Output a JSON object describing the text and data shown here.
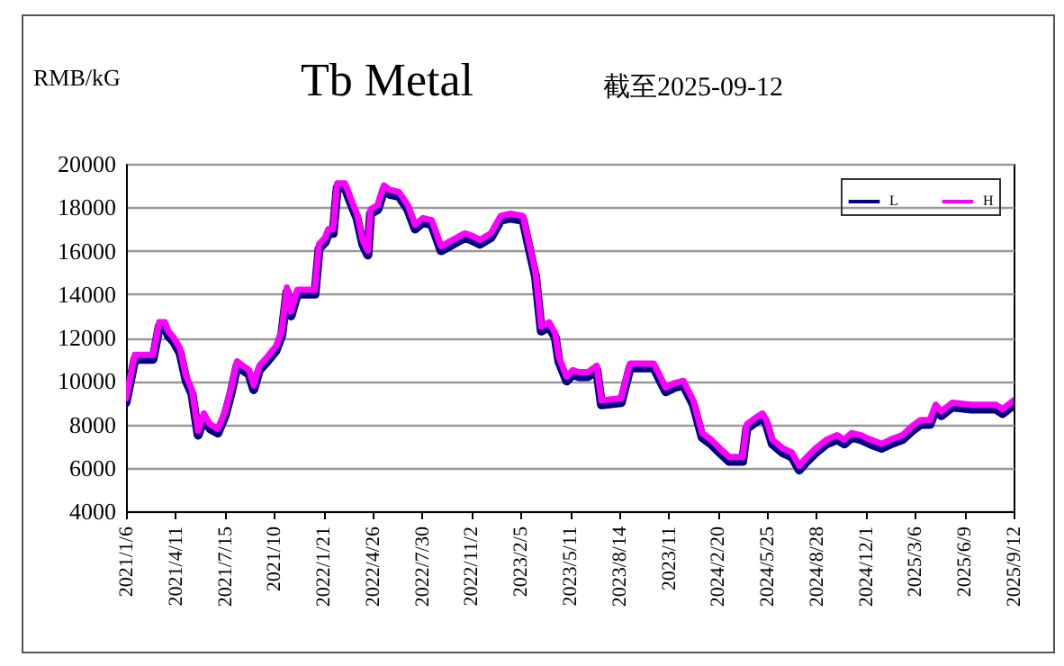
{
  "chart_data": {
    "type": "line",
    "title": "Tb Metal",
    "subtitle": "截至2025-09-12",
    "ylabel": "RMB/kG",
    "x": [
      "2021-01-06",
      "2021-01-23",
      "2021-02-27",
      "2021-03-11",
      "2021-03-22",
      "2021-03-28",
      "2021-04-08",
      "2021-04-20",
      "2021-05-02",
      "2021-05-13",
      "2021-05-25",
      "2021-06-05",
      "2021-06-17",
      "2021-07-02",
      "2021-07-16",
      "2021-07-27",
      "2021-08-08",
      "2021-08-19",
      "2021-08-31",
      "2021-09-09",
      "2021-09-20",
      "2021-10-05",
      "2021-10-22",
      "2021-11-02",
      "2021-11-12",
      "2021-11-20",
      "2021-12-02",
      "2022-01-05",
      "2022-01-13",
      "2022-01-25",
      "2022-01-31",
      "2022-02-09",
      "2022-02-17",
      "2022-03-04",
      "2022-03-15",
      "2022-03-27",
      "2022-04-07",
      "2022-04-17",
      "2022-04-22",
      "2022-05-06",
      "2022-05-18",
      "2022-05-29",
      "2022-06-16",
      "2022-07-03",
      "2022-07-17",
      "2022-08-01",
      "2022-08-18",
      "2022-09-05",
      "2022-09-28",
      "2022-10-21",
      "2022-11-02",
      "2022-11-19",
      "2022-12-10",
      "2022-12-29",
      "2023-01-16",
      "2023-02-10",
      "2023-02-19",
      "2023-03-06",
      "2023-03-17",
      "2023-04-01",
      "2023-04-13",
      "2023-04-20",
      "2023-05-05",
      "2023-05-17",
      "2023-05-28",
      "2023-06-15",
      "2023-07-02",
      "2023-07-11",
      "2023-08-18",
      "2023-09-04",
      "2023-10-20",
      "2023-11-12",
      "2023-11-29",
      "2023-12-16",
      "2024-01-04",
      "2024-01-21",
      "2024-02-07",
      "2024-02-24",
      "2024-03-13",
      "2024-04-08",
      "2024-04-16",
      "2024-05-03",
      "2024-05-16",
      "2024-05-24",
      "2024-06-04",
      "2024-06-24",
      "2024-07-12",
      "2024-07-26",
      "2024-08-10",
      "2024-08-27",
      "2024-09-17",
      "2024-10-07",
      "2024-10-21",
      "2024-11-04",
      "2024-11-22",
      "2024-12-10",
      "2025-01-01",
      "2025-01-18",
      "2025-02-10",
      "2025-02-28",
      "2025-03-17",
      "2025-04-04",
      "2025-04-15",
      "2025-04-26",
      "2025-05-17",
      "2025-06-23",
      "2025-08-09",
      "2025-08-22",
      "2025-09-12"
    ],
    "series": [
      {
        "name": "L",
        "color": "#000080",
        "values": [
          9000,
          11000,
          11000,
          12500,
          12500,
          12100,
          11800,
          11300,
          10000,
          9400,
          7500,
          8300,
          7800,
          7600,
          8400,
          9400,
          10700,
          10500,
          10300,
          9600,
          10500,
          10900,
          11400,
          12100,
          14100,
          13000,
          14000,
          14000,
          16100,
          16400,
          16800,
          16800,
          18900,
          18900,
          18200,
          17500,
          16300,
          15800,
          17700,
          17900,
          18800,
          18600,
          18500,
          17900,
          17000,
          17300,
          17200,
          16000,
          16300,
          16600,
          16500,
          16300,
          16600,
          17400,
          17500,
          17400,
          16400,
          14800,
          12300,
          12500,
          12000,
          10900,
          10000,
          10300,
          10200,
          10200,
          10500,
          8900,
          9000,
          10600,
          10600,
          9500,
          9700,
          9800,
          8900,
          7400,
          7100,
          6700,
          6300,
          6300,
          7800,
          8100,
          8300,
          8000,
          7100,
          6700,
          6500,
          5900,
          6300,
          6700,
          7100,
          7300,
          7100,
          7400,
          7300,
          7100,
          6900,
          7100,
          7300,
          7700,
          8000,
          8000,
          8700,
          8400,
          8800,
          8700,
          8700,
          8500,
          8900
        ]
      },
      {
        "name": "H",
        "color": "#ff00ff",
        "values": [
          9200,
          11200,
          11200,
          12700,
          12700,
          12300,
          12000,
          11500,
          10200,
          9600,
          7700,
          8500,
          8000,
          7800,
          8600,
          9600,
          10900,
          10700,
          10500,
          9800,
          10700,
          11100,
          11600,
          12300,
          14300,
          13200,
          14200,
          14200,
          16300,
          16600,
          17000,
          17000,
          19100,
          19100,
          18400,
          17700,
          16500,
          16000,
          17900,
          18100,
          19000,
          18800,
          18700,
          18100,
          17200,
          17500,
          17400,
          16200,
          16500,
          16800,
          16700,
          16500,
          16800,
          17600,
          17700,
          17600,
          16600,
          15000,
          12500,
          12700,
          12200,
          11100,
          10200,
          10500,
          10400,
          10400,
          10700,
          9100,
          9200,
          10800,
          10800,
          9700,
          9900,
          10000,
          9100,
          7600,
          7300,
          6900,
          6500,
          6500,
          8000,
          8300,
          8500,
          8200,
          7300,
          6900,
          6700,
          6100,
          6500,
          6900,
          7300,
          7500,
          7300,
          7600,
          7500,
          7300,
          7100,
          7300,
          7500,
          7900,
          8200,
          8200,
          8900,
          8600,
          9000,
          8900,
          8900,
          8700,
          9100
        ]
      }
    ],
    "xlim": [
      "2021-01-06",
      "2025-09-12"
    ],
    "xticks": [
      {
        "value": "2021-01-06",
        "label": "2021/1/6"
      },
      {
        "value": "2021-04-11",
        "label": "2021/4/11"
      },
      {
        "value": "2021-07-15",
        "label": "2021/7/15"
      },
      {
        "value": "2021-10-18",
        "label": "2021/10"
      },
      {
        "value": "2022-01-21",
        "label": "2022/1/21"
      },
      {
        "value": "2022-04-26",
        "label": "2022/4/26"
      },
      {
        "value": "2022-07-30",
        "label": "2022/7/30"
      },
      {
        "value": "2022-11-02",
        "label": "2022/11/2"
      },
      {
        "value": "2023-02-05",
        "label": "2023/2/5"
      },
      {
        "value": "2023-05-11",
        "label": "2023/5/11"
      },
      {
        "value": "2023-08-14",
        "label": "2023/8/14"
      },
      {
        "value": "2023-11-17",
        "label": "2023/11"
      },
      {
        "value": "2024-02-20",
        "label": "2024/2/20"
      },
      {
        "value": "2024-05-25",
        "label": "2024/5/25"
      },
      {
        "value": "2024-08-28",
        "label": "2024/8/28"
      },
      {
        "value": "2024-12-01",
        "label": "2024/12/1"
      },
      {
        "value": "2025-03-06",
        "label": "2025/3/6"
      },
      {
        "value": "2025-06-09",
        "label": "2025/6/9"
      },
      {
        "value": "2025-09-12",
        "label": "2025/9/12"
      }
    ],
    "ylim": [
      4000,
      20000
    ],
    "yticks": [
      4000,
      6000,
      8000,
      10000,
      12000,
      14000,
      16000,
      18000,
      20000
    ],
    "grid": "y",
    "legend": "top right"
  }
}
